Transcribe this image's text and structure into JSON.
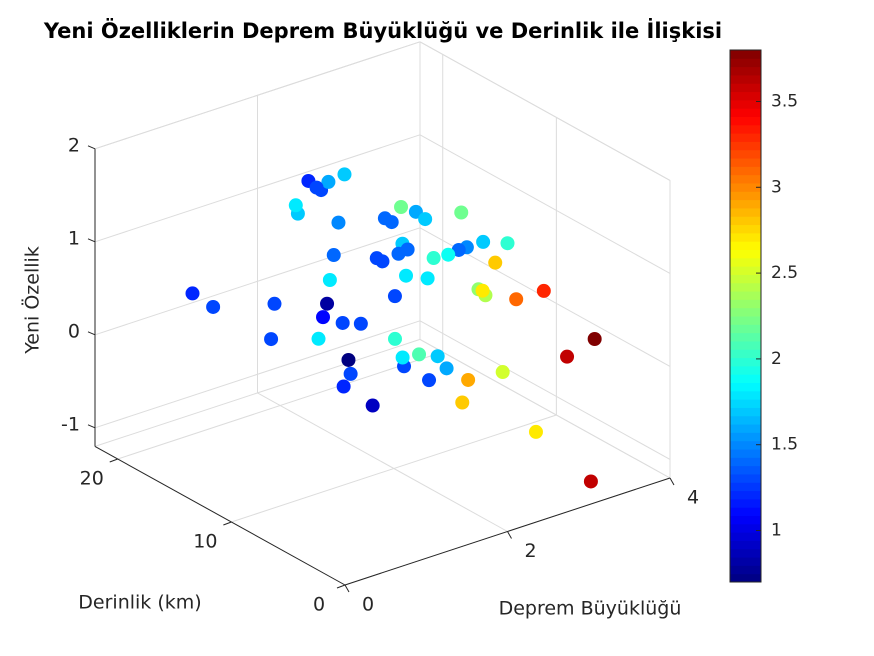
{
  "chart_data": {
    "type": "scatter3d",
    "title": "Yeni Özelliklerin Deprem Büyüklüğü ve Derinlik ile İlişkisi",
    "xlabel": "Deprem Büyüklüğü",
    "ylabel": "Derinlik (km)",
    "zlabel": "Yeni Özellik",
    "x": [
      1.2,
      1.3,
      1.3,
      1.3,
      0.8,
      1.1,
      1.3,
      1.3,
      1.8,
      0.7,
      1.3,
      1.2,
      0.9,
      1.3,
      1.3,
      2.0,
      1.8,
      2.1,
      1.7,
      1.6,
      2.9,
      2.8,
      2.5,
      2.7,
      3.6,
      3.6,
      3.8,
      3.1,
      3.3,
      2.3,
      2.4,
      2.7,
      2.8,
      2.0,
      1.7,
      1.5,
      1.4,
      1.9,
      2.0,
      2.2,
      2.2,
      1.6,
      1.7,
      1.4,
      1.4,
      1.7,
      1.4,
      1.4,
      1.3,
      1.3,
      1.8,
      1.8,
      1.3,
      1.8,
      1.4,
      1.5,
      1.7,
      1.8,
      1.2,
      1.3,
      1.6,
      1.7,
      1.3
    ],
    "y": [
      22,
      20.9,
      15.5,
      15.8,
      7.3,
      9.8,
      9.5,
      7.9,
      15.2,
      4.7,
      8.8,
      8.7,
      4.0,
      4.1,
      1.9,
      9.9,
      7.8,
      8.5,
      4.0,
      2.5,
      9.9,
      9.7,
      4.0,
      2.5,
      4.1,
      6.2,
      5.2,
      7.1,
      6.1,
      4.7,
      4.8,
      7.2,
      6.8,
      0,
      0,
      0,
      0,
      4.5,
      6.5,
      5.5,
      10.8,
      5.2,
      5.1,
      6.5,
      5.9,
      7.1,
      5.3,
      4.5,
      6.5,
      6.0,
      7.5,
      5.6,
      4.9,
      14.2,
      11.0,
      11.3,
      16.3,
      17.2,
      11.8,
      11.4,
      12.9,
      12.2,
      11.8
    ],
    "z": [
      0.1,
      0.0,
      0.4,
      0.0,
      1.1,
      0.7,
      0.6,
      0.7,
      -0.1,
      0.7,
      0.1,
      0.0,
      0.2,
      0.5,
      0.5,
      0.2,
      0.2,
      0.1,
      0.5,
      0.5,
      -0.5,
      -0.7,
      0.1,
      -0.5,
      -1.4,
      -0.2,
      0.0,
      0.5,
      0.6,
      1.0,
      0.9,
      0.7,
      1.0,
      1.9,
      2.0,
      2.0,
      2.0,
      1.5,
      1.3,
      1.8,
      1.5,
      2.0,
      1.9,
      1.9,
      1.9,
      1.5,
      1.6,
      1.7,
      1.5,
      1.5,
      1.1,
      1.2,
      1.2,
      0.6,
      1.2,
      1.5,
      1.2,
      1.2,
      2.0,
      1.9,
      1.8,
      1.9,
      1.9
    ],
    "xlim": [
      0,
      4
    ],
    "ylim": [
      0,
      22
    ],
    "zlim": [
      -1.2,
      2
    ],
    "xticks": [
      0,
      2,
      4
    ],
    "yticks": [
      0,
      10,
      20
    ],
    "zticks": [
      -1,
      0,
      1,
      2
    ],
    "grid": true,
    "colorbar": {
      "colormap": "jet",
      "clim": [
        0.7,
        3.8
      ],
      "ticks": [
        1,
        1.5,
        2,
        2.5,
        3,
        3.5
      ]
    }
  }
}
